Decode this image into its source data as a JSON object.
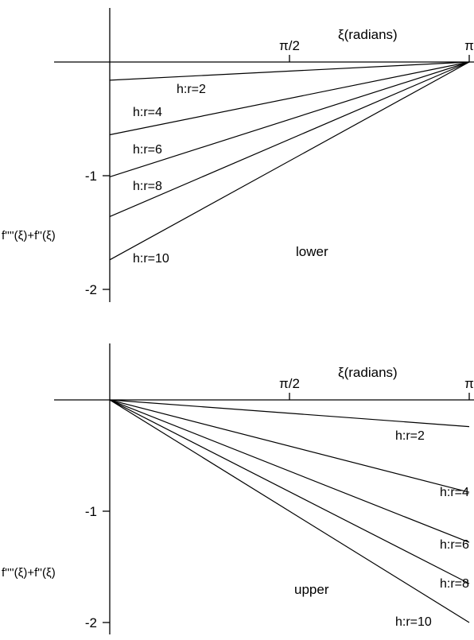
{
  "chart_data": [
    {
      "type": "line",
      "title": "",
      "xlabel": "ξ(radians)",
      "ylabel": "f''''(ξ)+f''(ξ)",
      "annotation": "lower",
      "x_ticks": [
        {
          "value": 1.5708,
          "label": "π/2"
        },
        {
          "value": 3.1416,
          "label": "π"
        }
      ],
      "y_ticks": [
        {
          "value": -1,
          "label": "-1"
        },
        {
          "value": -2,
          "label": "-2"
        }
      ],
      "xlim": [
        0,
        3.1416
      ],
      "ylim": [
        -2.1,
        0.5
      ],
      "grid": false,
      "series": [
        {
          "name": "h:r=2",
          "x": [
            0,
            3.1416
          ],
          "y": [
            -0.16,
            0
          ]
        },
        {
          "name": "h:r=4",
          "x": [
            0,
            3.1416
          ],
          "y": [
            -0.64,
            0
          ]
        },
        {
          "name": "h:r=6",
          "x": [
            0,
            3.1416
          ],
          "y": [
            -1.01,
            0
          ]
        },
        {
          "name": "h:r=8",
          "x": [
            0,
            3.1416
          ],
          "y": [
            -1.36,
            0
          ]
        },
        {
          "name": "h:r=10",
          "x": [
            0,
            3.1416
          ],
          "y": [
            -1.74,
            0
          ]
        }
      ]
    },
    {
      "type": "line",
      "title": "",
      "xlabel": "ξ(radians)",
      "ylabel": "f''''(ξ)+f''(ξ)",
      "annotation": "upper",
      "x_ticks": [
        {
          "value": 1.5708,
          "label": "π/2"
        },
        {
          "value": 3.1416,
          "label": "π"
        }
      ],
      "y_ticks": [
        {
          "value": -1,
          "label": "-1"
        },
        {
          "value": -2,
          "label": "-2"
        }
      ],
      "xlim": [
        0,
        3.1416
      ],
      "ylim": [
        -2.1,
        0.5
      ],
      "grid": false,
      "series": [
        {
          "name": "h:r=2",
          "x": [
            0,
            3.1416
          ],
          "y": [
            0,
            -0.24
          ]
        },
        {
          "name": "h:r=4",
          "x": [
            0,
            3.1416
          ],
          "y": [
            0,
            -0.83
          ]
        },
        {
          "name": "h:r=6",
          "x": [
            0,
            3.1416
          ],
          "y": [
            0,
            -1.28
          ]
        },
        {
          "name": "h:r=8",
          "x": [
            0,
            3.1416
          ],
          "y": [
            0,
            -1.65
          ]
        },
        {
          "name": "h:r=10",
          "x": [
            0,
            3.1416
          ],
          "y": [
            0,
            -2.0
          ]
        }
      ]
    }
  ]
}
